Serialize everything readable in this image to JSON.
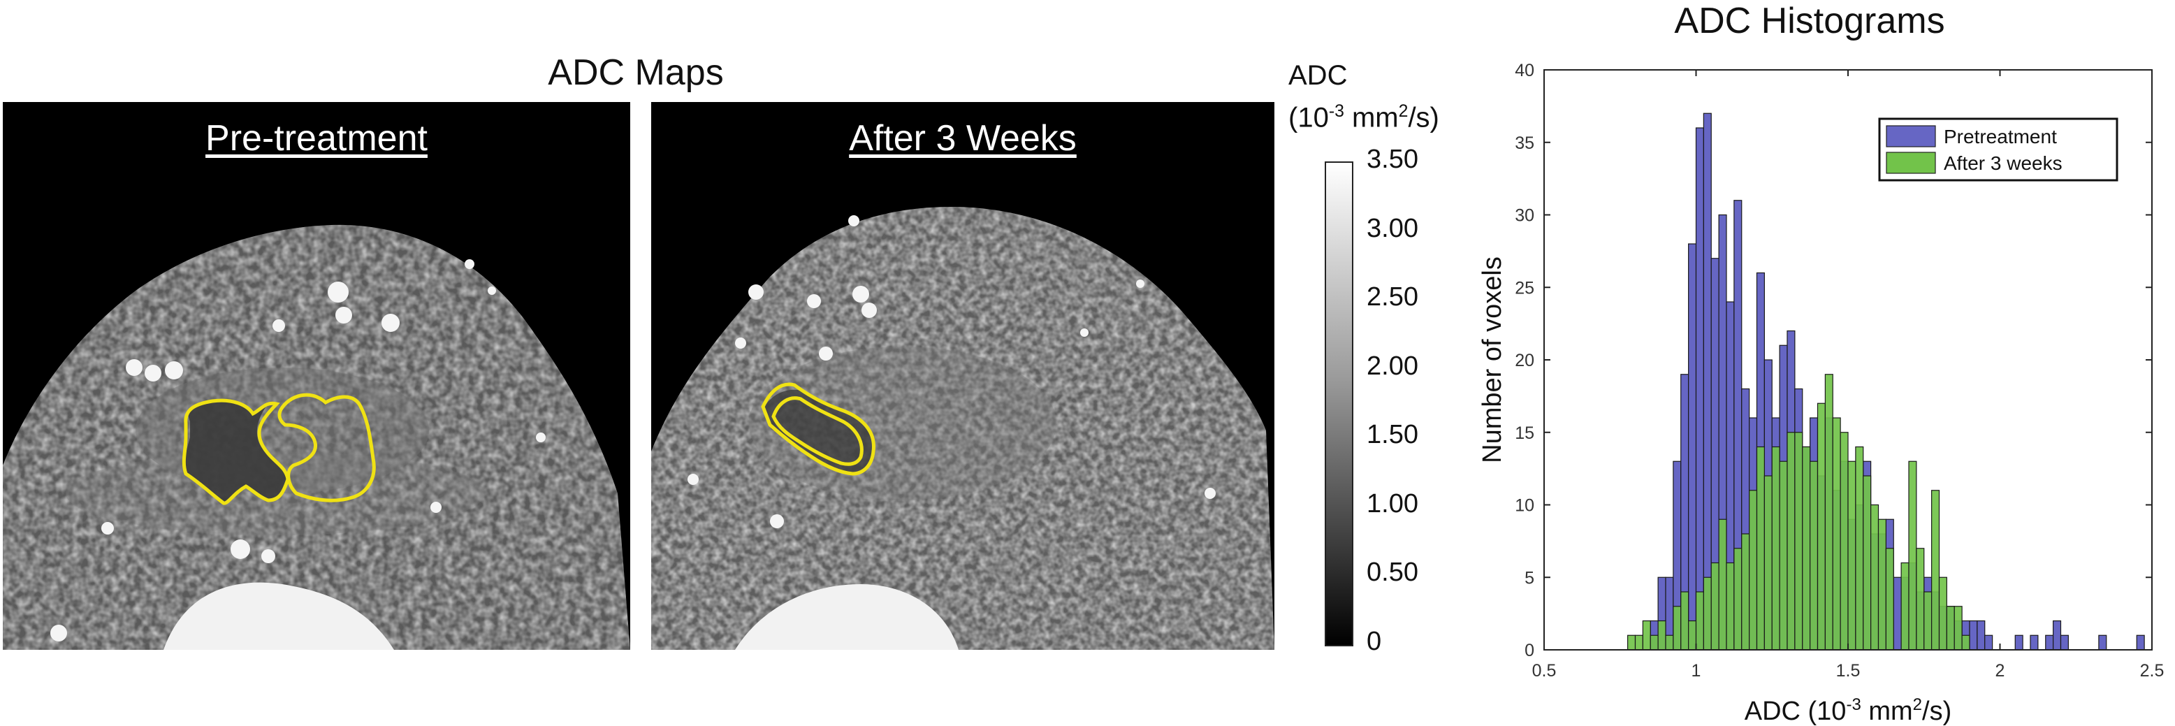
{
  "maps": {
    "title": "ADC Maps",
    "panels": [
      {
        "label": "Pre-treatment"
      },
      {
        "label": "After 3 Weeks"
      }
    ]
  },
  "colorbar": {
    "title_line1": "ADC",
    "title_line2_base": "(10",
    "title_line2_exp": "-3",
    "title_line2_unit": " mm",
    "title_line2_exp2": "2",
    "title_line2_end": "/s)",
    "ticks": [
      "3.50",
      "3.00",
      "2.50",
      "2.00",
      "1.50",
      "1.00",
      "0.50",
      "0"
    ],
    "range": [
      0,
      3.5
    ]
  },
  "histogram": {
    "title": "ADC Histograms",
    "ylabel": "Number of voxels",
    "xlabel_base": "ADC (10",
    "xlabel_exp": "-3",
    "xlabel_unit": " mm",
    "xlabel_exp2": "2",
    "xlabel_end": "/s)"
  },
  "chart_data": {
    "type": "bar",
    "title": "ADC Histograms",
    "ylabel": "Number of voxels",
    "xlim": [
      0.5,
      2.5
    ],
    "ylim": [
      0,
      40
    ],
    "xticks": [
      "0.5",
      "1",
      "1.5",
      "2",
      "2.5"
    ],
    "yticks": [
      "0",
      "5",
      "10",
      "15",
      "20",
      "25",
      "30",
      "35",
      "40"
    ],
    "bin_width": 0.025,
    "legend_position": "top-right",
    "series": [
      {
        "name": "Pretreatment",
        "color": "#6666c4",
        "x": [
          0.8625,
          0.8875,
          0.9125,
          0.9375,
          0.9625,
          0.9875,
          1.0125,
          1.0375,
          1.0625,
          1.0875,
          1.1125,
          1.1375,
          1.1625,
          1.1875,
          1.2125,
          1.2375,
          1.2625,
          1.2875,
          1.3125,
          1.3375,
          1.3625,
          1.3875,
          1.4125,
          1.4375,
          1.4625,
          1.4875,
          1.5125,
          1.5375,
          1.5625,
          1.5875,
          1.6125,
          1.6375,
          1.6625,
          1.6875,
          1.7125,
          1.7375,
          1.7625,
          1.7875,
          1.8125,
          1.8375,
          1.8625,
          1.8875,
          1.9125,
          1.9375,
          1.9625,
          2.0625,
          2.1125,
          2.1625,
          2.1875,
          2.2125,
          2.3375,
          2.4625
        ],
        "values": [
          2,
          5,
          5,
          13,
          19,
          28,
          36,
          37,
          27,
          30,
          24,
          31,
          18,
          16,
          26,
          20,
          16,
          21,
          22,
          18,
          14,
          16,
          12,
          16,
          11,
          13,
          9,
          10,
          13,
          8,
          8,
          9,
          5,
          5,
          6,
          4,
          5,
          4,
          3,
          3,
          2,
          2,
          2,
          2,
          1,
          1,
          1,
          1,
          2,
          1,
          1,
          1
        ]
      },
      {
        "name": "After 3 weeks",
        "color": "#72c34a",
        "x": [
          0.7875,
          0.8125,
          0.8375,
          0.8625,
          0.8875,
          0.9125,
          0.9375,
          0.9625,
          0.9875,
          1.0125,
          1.0375,
          1.0625,
          1.0875,
          1.1125,
          1.1375,
          1.1625,
          1.1875,
          1.2125,
          1.2375,
          1.2625,
          1.2875,
          1.3125,
          1.3375,
          1.3625,
          1.3875,
          1.4125,
          1.4375,
          1.4625,
          1.4875,
          1.5125,
          1.5375,
          1.5625,
          1.5875,
          1.6125,
          1.6375,
          1.6875,
          1.7125,
          1.7375,
          1.7625,
          1.7875,
          1.8125,
          1.8375,
          1.8625,
          1.8875
        ],
        "values": [
          1,
          1,
          2,
          1,
          2,
          1,
          3,
          4,
          2,
          4,
          5,
          6,
          9,
          6,
          7,
          8,
          11,
          14,
          12,
          14,
          13,
          15,
          15,
          14,
          13,
          17,
          19,
          16,
          15,
          13,
          14,
          12,
          10,
          9,
          7,
          6,
          13,
          7,
          4,
          11,
          5,
          3,
          3,
          1
        ]
      }
    ]
  }
}
